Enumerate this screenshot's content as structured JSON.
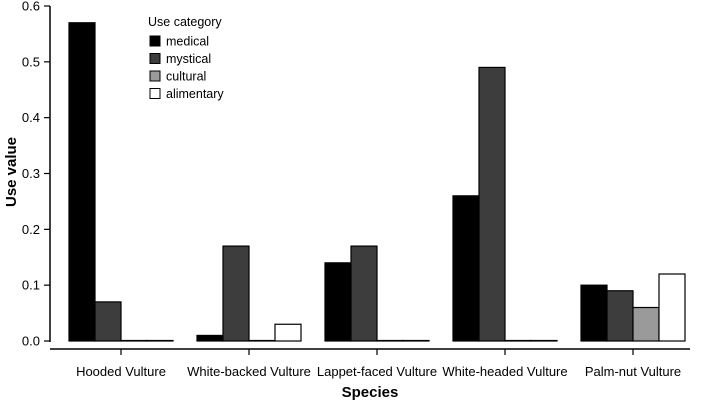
{
  "chart_data": {
    "type": "bar",
    "xlabel": "Species",
    "ylabel": "Use value",
    "ylim": [
      0,
      0.6
    ],
    "yticks": [
      "0.0",
      "0.1",
      "0.2",
      "0.3",
      "0.4",
      "0.5",
      "0.6"
    ],
    "categories": [
      "Hooded Vulture",
      "White-backed Vulture",
      "Lappet-faced Vulture",
      "White-headed Vulture",
      "Palm-nut Vulture"
    ],
    "legend": {
      "title": "Use category",
      "placement": "top-left"
    },
    "series": [
      {
        "name": "medical",
        "color": "#000000",
        "values": [
          0.57,
          0.01,
          0.14,
          0.26,
          0.1
        ]
      },
      {
        "name": "mystical",
        "color": "#3d3d3d",
        "values": [
          0.07,
          0.17,
          0.17,
          0.49,
          0.09
        ]
      },
      {
        "name": "cultural",
        "color": "#9a9a9a",
        "values": [
          0.0,
          0.0,
          0.0,
          0.0,
          0.06
        ]
      },
      {
        "name": "alimentary",
        "color": "#ffffff",
        "values": [
          0.0,
          0.03,
          0.0,
          0.0,
          0.12
        ]
      }
    ],
    "grid": false
  }
}
